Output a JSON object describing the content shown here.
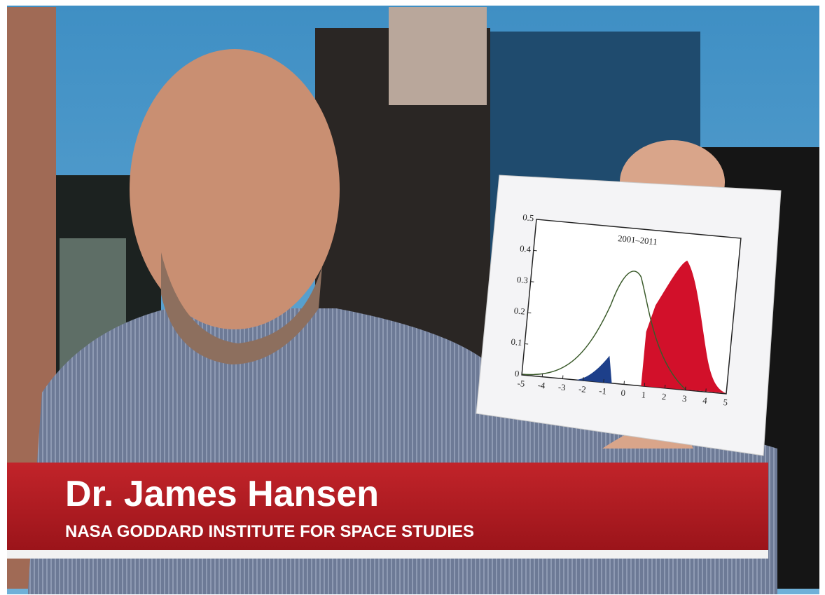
{
  "lower_third": {
    "name": "Dr. James Hansen",
    "affiliation": "NASA GODDARD INSTITUTE FOR SPACE STUDIES"
  },
  "held_chart": {
    "title": "2001–2011",
    "yticks": [
      0,
      0.1,
      0.2,
      0.3,
      0.4,
      0.5
    ],
    "xticks": [
      -5,
      -4,
      -3,
      -2,
      -1,
      0,
      1,
      2,
      3,
      4,
      5
    ]
  }
}
